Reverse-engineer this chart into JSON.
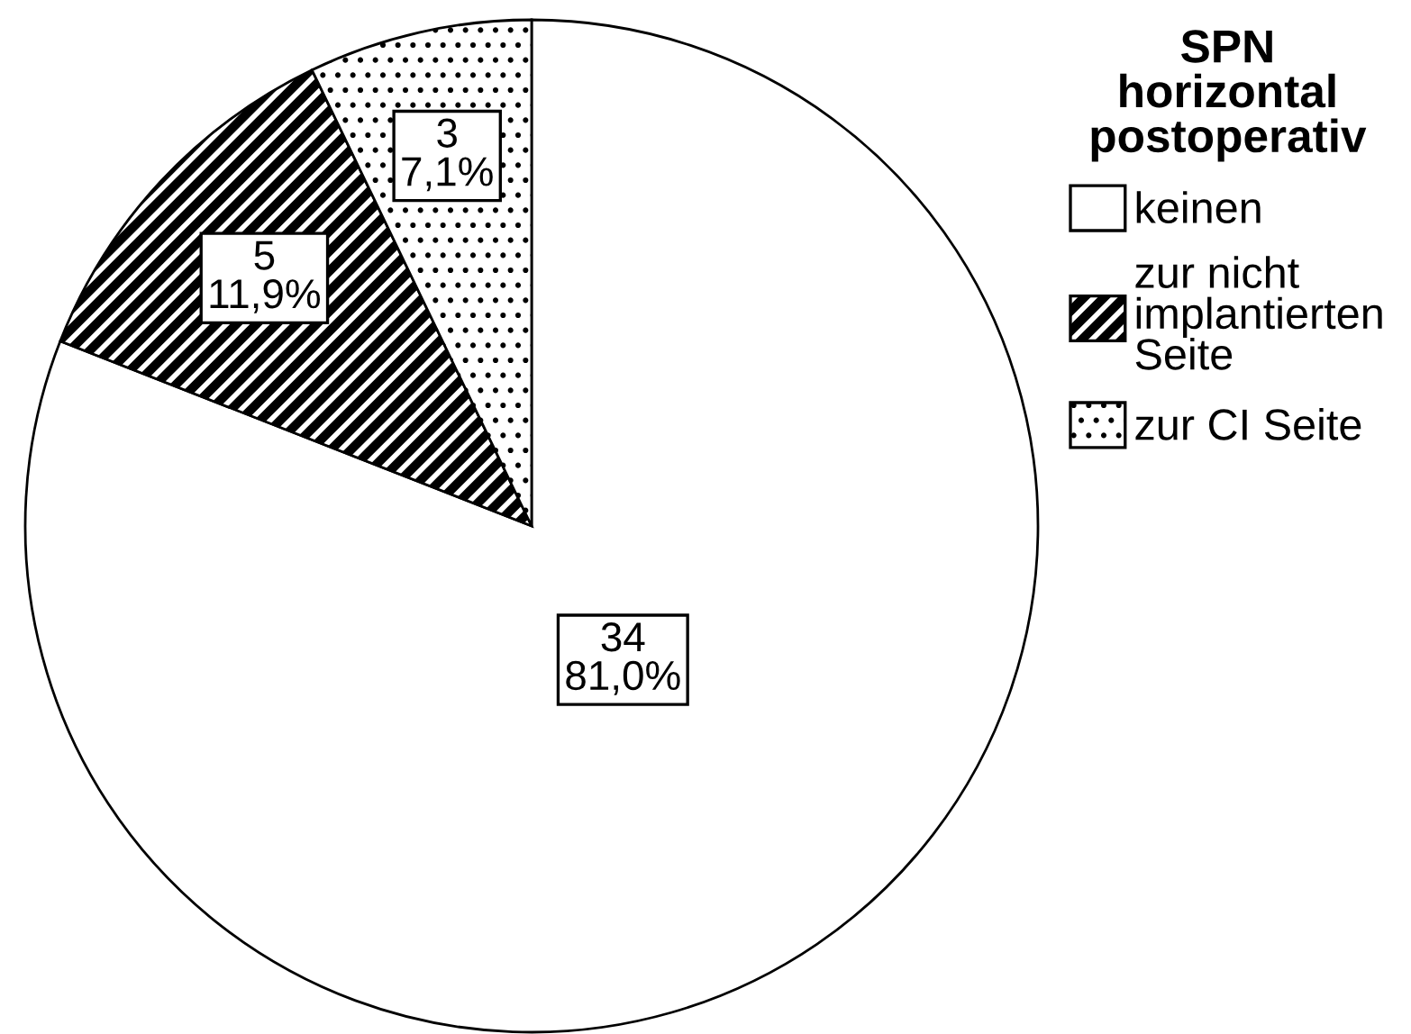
{
  "chart_data": {
    "type": "pie",
    "categories": [
      "keinen",
      "zur nicht\nimplantierten\nSeite",
      "zur CI Seite"
    ],
    "values": [
      34,
      5,
      3
    ],
    "colors": [
      "#ffffff",
      "#000000",
      "#000000"
    ],
    "value_labels": [
      "34\n81,0%",
      "5\n11,9%",
      "3\n7,1%"
    ],
    "legend_title": "SPN\nhorizontal\npostoperativ",
    "legend": "top right"
  }
}
